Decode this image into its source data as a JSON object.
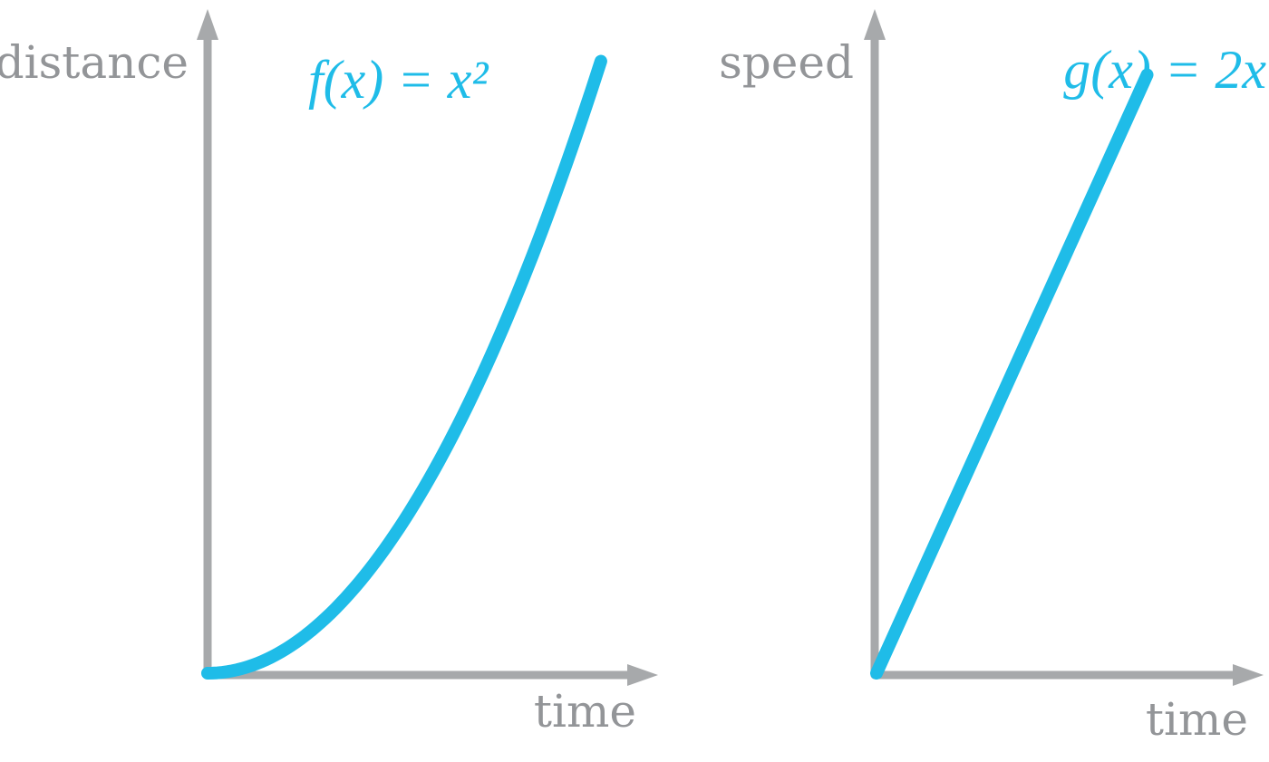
{
  "chart_data": [
    {
      "type": "line",
      "title": "",
      "formula": "f(x) = x²",
      "xlabel": "time",
      "ylabel": "distance",
      "xlim": [
        0,
        1.15
      ],
      "ylim": [
        0,
        1.1
      ],
      "grid": false,
      "series": [
        {
          "name": "f(x) = x²",
          "color": "#1fbce8",
          "function": "x^2",
          "x_start": 0,
          "x_end": 1
        }
      ]
    },
    {
      "type": "line",
      "title": "",
      "formula": "g(x) = 2x",
      "xlabel": "time",
      "ylabel": "speed",
      "xlim": [
        0,
        1.35
      ],
      "ylim": [
        0,
        2.25
      ],
      "grid": false,
      "series": [
        {
          "name": "g(x) = 2x",
          "color": "#1fbce8",
          "function": "2x",
          "x_start": 0,
          "x_end": 1
        }
      ]
    }
  ],
  "colors": {
    "axis": "#a7a9ab",
    "label": "#939598",
    "series": "#1fbce8"
  }
}
